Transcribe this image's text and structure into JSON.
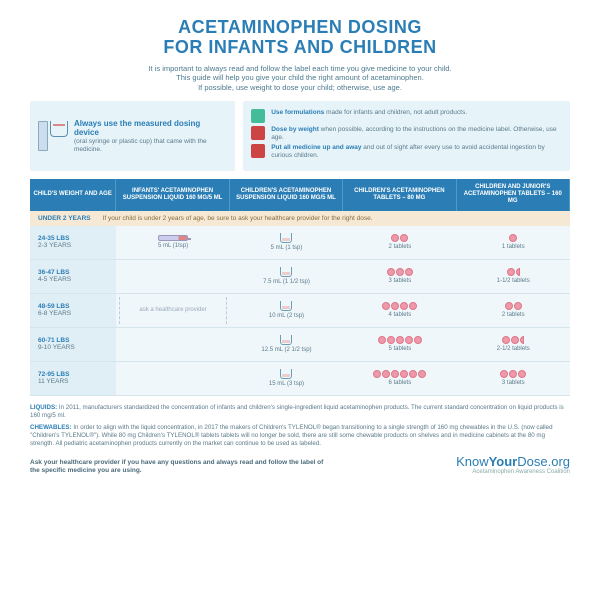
{
  "title": "ACETAMINOPHEN DOSING\nFOR INFANTS AND CHILDREN",
  "subtitle": "It is important to always read and follow the label each time you give medicine to your child.\nThis guide will help you give your child the right amount of acetaminophen.\nIf possible, use weight to dose your child; otherwise, use age.",
  "box1": {
    "title": "Always use the measured dosing device",
    "sub": "(oral syringe or plastic cup) that came with the medicine."
  },
  "box2": {
    "tips": [
      {
        "bold": "Use formulations",
        "text": " made for infants and children, not adult products."
      },
      {
        "bold": "Dose by weight",
        "text": " when possible, according to the instructions on the medicine label. Otherwise, use age."
      },
      {
        "bold": "Put all medicine up and away",
        "text": " and out of sight after every use to avoid accidental ingestion by curious children."
      }
    ]
  },
  "headers": [
    "CHILD'S WEIGHT AND AGE",
    "INFANTS' ACETAMINOPHEN SUSPENSION LIQUID 160 MG/5 ML",
    "CHILDREN'S ACETAMINOPHEN SUSPENSION LIQUID 160 MG/5 ML",
    "CHILDREN'S ACETAMINOPHEN TABLETS – 80 MG",
    "CHILDREN AND JUNIOR'S ACETAMINOPHEN TABLETS – 160 MG"
  ],
  "under2": {
    "label": "UNDER 2 YEARS",
    "note": "If your child is under 2 years of age, be sure to ask your healthcare provider for the right dose."
  },
  "rows": [
    {
      "wt": "24-35 LBS",
      "age": "2-3 YEARS",
      "c2": "5 mL (1tsp)",
      "c2type": "syr",
      "c3": "5 mL (1 tsp)",
      "c4n": 2,
      "c4": "2 tablets",
      "c5n": 1,
      "c5": "1 tablets"
    },
    {
      "wt": "36-47 LBS",
      "age": "4-5 YEARS",
      "c2": "",
      "c3": "7.5 mL (1 1/2 tsp)",
      "c4n": 3,
      "c4": "3 tablets",
      "c5n": 1.5,
      "c5": "1-1/2 tablets"
    },
    {
      "wt": "48-59 LBS",
      "age": "6-8 YEARS",
      "c2": "ask a healthcare provider",
      "c3": "10 mL (2 tsp)",
      "c4n": 4,
      "c4": "4 tablets",
      "c5n": 2,
      "c5": "2 tablets"
    },
    {
      "wt": "60-71 LBS",
      "age": "9-10 YEARS",
      "c2": "",
      "c3": "12.5 mL (2 1/2 tsp)",
      "c4n": 5,
      "c4": "5 tablets",
      "c5n": 2.5,
      "c5": "2-1/2 tablets"
    },
    {
      "wt": "72-95 LBS",
      "age": "11 YEARS",
      "c2": "",
      "c3": "15 mL (3 tsp)",
      "c4n": 6,
      "c4": "6 tablets",
      "c5n": 3,
      "c5": "3 tablets"
    }
  ],
  "footnotes": {
    "liquids": "In 2011, manufacturers standardized the concentration of infants and children's single-ingredient liquid acetaminophen products. The current standard concentration on liquid products is 160 mg/5 ml.",
    "chewables": "In order to align with the liquid concentration, in 2017 the makers of Children's TYLENOL® began transitioning to a single strength of 160 mg chewables in the U.S. (now called \"Children's TYLENOL®\"). While 80 mg Children's TYLENOL® tablets tablets will no longer be sold, there are still some chewable products on shelves and in medicine cabinets at the 80 mg strength. All pediatric acetaminophen products currently on the market can continue to be used as labeled."
  },
  "ask": "Ask your healthcare provider if you have any questions and always read and follow the label of the specific medicine you are using.",
  "logo": {
    "name": "KnowYourDose.org",
    "tag": "Acetaminophen Awareness Coalition"
  }
}
